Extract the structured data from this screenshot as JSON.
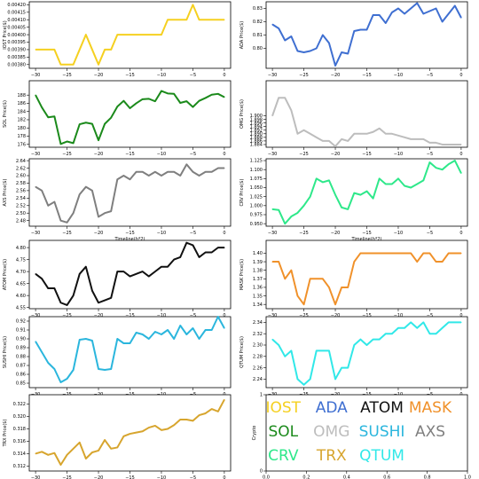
{
  "xaxis": {
    "range": [
      -31,
      1
    ],
    "ticks": [
      -30,
      -25,
      -20,
      -15,
      -10,
      -5,
      0
    ],
    "label": "Timeline(h*2)"
  },
  "legend_panel": {
    "ylabel": "Crypto",
    "xticks": [
      "0.0",
      "0.2",
      "0.4",
      "0.6",
      "0.8",
      "1.0"
    ],
    "yticks": [
      "0",
      "1"
    ],
    "entries": [
      {
        "label": "IOST",
        "color": "#f5d020"
      },
      {
        "label": "ADA",
        "color": "#3f6fd1"
      },
      {
        "label": "ATOM",
        "color": "#111111"
      },
      {
        "label": "MASK",
        "color": "#f0912a"
      },
      {
        "label": "SOL",
        "color": "#1b8a1b"
      },
      {
        "label": "OMG",
        "color": "#bdbdbd"
      },
      {
        "label": "SUSHI",
        "color": "#2bb6dd"
      },
      {
        "label": "AXS",
        "color": "#7f7f7f"
      },
      {
        "label": "CRV",
        "color": "#2ee88a"
      },
      {
        "label": "TRX",
        "color": "#d7a52e"
      },
      {
        "label": "QTUM",
        "color": "#31e8e8"
      }
    ]
  },
  "chart_data": [
    {
      "type": "line",
      "symbol": "IOST",
      "ylabel": "IOST Price($)",
      "color": "#f5d020",
      "show_xlabel": false,
      "ylim": [
        0.003775,
        0.00422
      ],
      "yticks": [
        "0.00380",
        "0.00385",
        "0.00390",
        "0.00395",
        "0.00400",
        "0.00405",
        "0.00410",
        "0.00415",
        "0.00420"
      ],
      "x": [
        -30,
        -29,
        -28,
        -27,
        -26,
        -25,
        -24,
        -23,
        -22,
        -21,
        -20,
        -19,
        -18,
        -17,
        -16,
        -15,
        -14,
        -13,
        -12,
        -11,
        -10,
        -9,
        -8,
        -7,
        -6,
        -5,
        -4,
        -3,
        -2,
        -1,
        0
      ],
      "values": [
        0.0039,
        0.0039,
        0.0039,
        0.0039,
        0.0038,
        0.0038,
        0.0038,
        0.0039,
        0.004,
        0.0039,
        0.0038,
        0.0039,
        0.0039,
        0.004,
        0.004,
        0.004,
        0.004,
        0.004,
        0.004,
        0.004,
        0.004,
        0.0041,
        0.0041,
        0.0041,
        0.0041,
        0.0042,
        0.0041,
        0.0041,
        0.0041,
        0.0041,
        0.0041
      ]
    },
    {
      "type": "line",
      "symbol": "ADA",
      "ylabel": "ADA Price($)",
      "color": "#3f6fd1",
      "show_xlabel": false,
      "ylim": [
        0.785,
        0.835
      ],
      "yticks": [
        "0.80",
        "0.81",
        "0.82",
        "0.83"
      ],
      "x": [
        -30,
        -29,
        -28,
        -27,
        -26,
        -25,
        -24,
        -23,
        -22,
        -21,
        -20,
        -19,
        -18,
        -17,
        -16,
        -15,
        -14,
        -13,
        -12,
        -11,
        -10,
        -9,
        -8,
        -7,
        -6,
        -5,
        -4,
        -3,
        -2,
        -1,
        0
      ],
      "values": [
        0.818,
        0.815,
        0.806,
        0.809,
        0.798,
        0.797,
        0.798,
        0.8,
        0.81,
        0.804,
        0.787,
        0.797,
        0.796,
        0.813,
        0.814,
        0.814,
        0.825,
        0.825,
        0.819,
        0.827,
        0.83,
        0.826,
        0.83,
        0.834,
        0.826,
        0.828,
        0.83,
        0.82,
        0.826,
        0.832,
        0.823
      ]
    },
    {
      "type": "line",
      "symbol": "SOL",
      "ylabel": "SOL Price($)",
      "color": "#1b8a1b",
      "show_xlabel": false,
      "ylim": [
        175.3,
        191.5
      ],
      "yticks": [
        "176",
        "178",
        "180",
        "182",
        "184",
        "186",
        "188"
      ],
      "x": [
        -30,
        -29,
        -28,
        -27,
        -26,
        -25,
        -24,
        -23,
        -22,
        -21,
        -20,
        -19,
        -18,
        -17,
        -16,
        -15,
        -14,
        -13,
        -12,
        -11,
        -10,
        -9,
        -8,
        -7,
        -6,
        -5,
        -4,
        -3,
        -2,
        -1,
        0
      ],
      "values": [
        188,
        185,
        182.6,
        182.8,
        176.1,
        176.7,
        176.3,
        180.9,
        181.3,
        181,
        177,
        181,
        182.5,
        185.2,
        186.6,
        184.8,
        186,
        187,
        187.1,
        186.5,
        189,
        188.4,
        188.3,
        186.1,
        186.5,
        185.1,
        186.6,
        187.3,
        188.1,
        188.3,
        187.5
      ]
    },
    {
      "type": "line",
      "symbol": "OMG",
      "ylabel": "OMG Price($)",
      "color": "#bdbdbd",
      "show_xlabel": false,
      "ylim": [
        1.8825,
        1.9195
      ],
      "yticks": [
        "1.884",
        "1.886",
        "1.888",
        "1.890",
        "1.892",
        "1.894",
        "1.896",
        "1.898",
        "1.900"
      ],
      "x": [
        -30,
        -29,
        -28,
        -27,
        -26,
        -25,
        -24,
        -23,
        -22,
        -21,
        -20,
        -19,
        -18,
        -17,
        -16,
        -15,
        -14,
        -13,
        -12,
        -11,
        -10,
        -9,
        -8,
        -7,
        -6,
        -5,
        -4,
        -3,
        -2,
        -1,
        0
      ],
      "values": [
        1.9,
        1.91,
        1.91,
        1.903,
        1.89,
        1.892,
        1.89,
        1.888,
        1.886,
        1.886,
        1.883,
        1.887,
        1.886,
        1.89,
        1.89,
        1.89,
        1.891,
        1.893,
        1.89,
        1.89,
        1.889,
        1.888,
        1.887,
        1.887,
        1.887,
        1.885,
        1.885,
        1.884,
        1.884,
        1.884,
        1.884
      ]
    },
    {
      "type": "line",
      "symbol": "AXS",
      "ylabel": "AXS Price($)",
      "color": "#7f7f7f",
      "show_xlabel": true,
      "ylim": [
        2.465,
        2.645
      ],
      "yticks": [
        "2.48",
        "2.50",
        "2.52",
        "2.54",
        "2.56",
        "2.58",
        "2.60",
        "2.62",
        "2.64"
      ],
      "x": [
        -30,
        -29,
        -28,
        -27,
        -26,
        -25,
        -24,
        -23,
        -22,
        -21,
        -20,
        -19,
        -18,
        -17,
        -16,
        -15,
        -14,
        -13,
        -12,
        -11,
        -10,
        -9,
        -8,
        -7,
        -6,
        -5,
        -4,
        -3,
        -2,
        -1,
        0
      ],
      "values": [
        2.57,
        2.56,
        2.52,
        2.53,
        2.48,
        2.475,
        2.5,
        2.55,
        2.57,
        2.56,
        2.49,
        2.5,
        2.505,
        2.59,
        2.6,
        2.59,
        2.61,
        2.61,
        2.6,
        2.61,
        2.6,
        2.61,
        2.61,
        2.6,
        2.63,
        2.61,
        2.6,
        2.61,
        2.61,
        2.62,
        2.62
      ]
    },
    {
      "type": "line",
      "symbol": "CRV",
      "ylabel": "CRV Price($)",
      "color": "#2ee88a",
      "show_xlabel": true,
      "ylim": [
        0.943,
        1.13
      ],
      "yticks": [
        "0.950",
        "0.975",
        "1.000",
        "1.025",
        "1.050",
        "1.075",
        "1.100",
        "1.125"
      ],
      "x": [
        -30,
        -29,
        -28,
        -27,
        -26,
        -25,
        -24,
        -23,
        -22,
        -21,
        -20,
        -19,
        -18,
        -17,
        -16,
        -15,
        -14,
        -13,
        -12,
        -11,
        -10,
        -9,
        -8,
        -7,
        -6,
        -5,
        -4,
        -3,
        -2,
        -1,
        0
      ],
      "values": [
        0.99,
        0.988,
        0.95,
        0.97,
        0.98,
        1.0,
        1.025,
        1.075,
        1.065,
        1.07,
        1.03,
        0.995,
        0.99,
        1.035,
        1.03,
        1.04,
        1.02,
        1.075,
        1.06,
        1.06,
        1.075,
        1.055,
        1.05,
        1.06,
        1.07,
        1.12,
        1.105,
        1.1,
        1.115,
        1.125,
        1.09
      ]
    },
    {
      "type": "line",
      "symbol": "ATOM",
      "ylabel": "ATOM Price($)",
      "color": "#111111",
      "show_xlabel": false,
      "ylim": [
        4.545,
        4.83
      ],
      "yticks": [
        "4.55",
        "4.60",
        "4.65",
        "4.70",
        "4.75",
        "4.80"
      ],
      "x": [
        -30,
        -29,
        -28,
        -27,
        -26,
        -25,
        -24,
        -23,
        -22,
        -21,
        -20,
        -19,
        -18,
        -17,
        -16,
        -15,
        -14,
        -13,
        -12,
        -11,
        -10,
        -9,
        -8,
        -7,
        -6,
        -5,
        -4,
        -3,
        -2,
        -1,
        0
      ],
      "values": [
        4.69,
        4.67,
        4.63,
        4.63,
        4.57,
        4.56,
        4.6,
        4.69,
        4.72,
        4.62,
        4.57,
        4.58,
        4.59,
        4.7,
        4.7,
        4.68,
        4.69,
        4.7,
        4.68,
        4.7,
        4.72,
        4.72,
        4.75,
        4.76,
        4.82,
        4.81,
        4.76,
        4.78,
        4.78,
        4.8,
        4.8
      ]
    },
    {
      "type": "line",
      "symbol": "MASK",
      "ylabel": "MASK Price($)",
      "color": "#f0912a",
      "show_xlabel": false,
      "ylim": [
        1.335,
        1.415
      ],
      "yticks": [
        "1.34",
        "1.35",
        "1.36",
        "1.37",
        "1.38",
        "1.39",
        "1.40"
      ],
      "x": [
        -30,
        -29,
        -28,
        -27,
        -26,
        -25,
        -24,
        -23,
        -22,
        -21,
        -20,
        -19,
        -18,
        -17,
        -16,
        -15,
        -14,
        -13,
        -12,
        -11,
        -10,
        -9,
        -8,
        -7,
        -6,
        -5,
        -4,
        -3,
        -2,
        -1,
        0
      ],
      "values": [
        1.39,
        1.39,
        1.37,
        1.38,
        1.35,
        1.34,
        1.37,
        1.37,
        1.37,
        1.36,
        1.34,
        1.36,
        1.36,
        1.39,
        1.4,
        1.4,
        1.4,
        1.4,
        1.4,
        1.4,
        1.4,
        1.4,
        1.4,
        1.39,
        1.4,
        1.4,
        1.39,
        1.39,
        1.4,
        1.4,
        1.4
      ]
    },
    {
      "type": "line",
      "symbol": "SUSHI",
      "ylabel": "SUSHI Price($)",
      "color": "#2bb6dd",
      "show_xlabel": false,
      "ylim": [
        0.845,
        0.925
      ],
      "yticks": [
        "0.85",
        "0.86",
        "0.87",
        "0.88",
        "0.89",
        "0.90",
        "0.91",
        "0.92"
      ],
      "x": [
        -30,
        -29,
        -28,
        -27,
        -26,
        -25,
        -24,
        -23,
        -22,
        -21,
        -20,
        -19,
        -18,
        -17,
        -16,
        -15,
        -14,
        -13,
        -12,
        -11,
        -10,
        -9,
        -8,
        -7,
        -6,
        -5,
        -4,
        -3,
        -2,
        -1,
        0
      ],
      "values": [
        0.897,
        0.885,
        0.873,
        0.866,
        0.851,
        0.855,
        0.865,
        0.899,
        0.9,
        0.898,
        0.866,
        0.865,
        0.866,
        0.9,
        0.895,
        0.895,
        0.907,
        0.905,
        0.9,
        0.908,
        0.905,
        0.91,
        0.9,
        0.915,
        0.905,
        0.912,
        0.9,
        0.91,
        0.91,
        0.925,
        0.912
      ]
    },
    {
      "type": "line",
      "symbol": "QTUM",
      "ylabel": "QTUM Price($)",
      "color": "#31e8e8",
      "show_xlabel": true,
      "ylim": [
        2.225,
        2.35
      ],
      "yticks": [
        "2.24",
        "2.26",
        "2.28",
        "2.30",
        "2.32",
        "2.34"
      ],
      "x": [
        -30,
        -29,
        -28,
        -27,
        -26,
        -25,
        -24,
        -23,
        -22,
        -21,
        -20,
        -19,
        -18,
        -17,
        -16,
        -15,
        -14,
        -13,
        -12,
        -11,
        -10,
        -9,
        -8,
        -7,
        -6,
        -5,
        -4,
        -3,
        -2,
        -1,
        0
      ],
      "values": [
        2.31,
        2.3,
        2.28,
        2.29,
        2.24,
        2.23,
        2.24,
        2.29,
        2.29,
        2.29,
        2.24,
        2.26,
        2.26,
        2.3,
        2.31,
        2.3,
        2.31,
        2.31,
        2.32,
        2.32,
        2.33,
        2.33,
        2.34,
        2.33,
        2.34,
        2.32,
        2.32,
        2.33,
        2.34,
        2.34,
        2.34
      ]
    },
    {
      "type": "line",
      "symbol": "TRX",
      "ylabel": "TRX Price($)",
      "color": "#d7a52e",
      "show_xlabel": true,
      "ylim": [
        0.3112,
        0.3235
      ],
      "yticks": [
        "0.312",
        "0.314",
        "0.316",
        "0.318",
        "0.320",
        "0.322"
      ],
      "x": [
        -30,
        -29,
        -28,
        -27,
        -26,
        -25,
        -24,
        -23,
        -22,
        -21,
        -20,
        -19,
        -18,
        -17,
        -16,
        -15,
        -14,
        -13,
        -12,
        -11,
        -10,
        -9,
        -8,
        -7,
        -6,
        -5,
        -4,
        -3,
        -2,
        -1,
        0
      ],
      "values": [
        0.314,
        0.3143,
        0.3138,
        0.3141,
        0.3122,
        0.3138,
        0.3148,
        0.3158,
        0.3132,
        0.3142,
        0.3145,
        0.3162,
        0.3148,
        0.315,
        0.3168,
        0.3172,
        0.3174,
        0.3176,
        0.3182,
        0.3185,
        0.3178,
        0.318,
        0.3186,
        0.3195,
        0.3195,
        0.3193,
        0.3202,
        0.3205,
        0.3212,
        0.3208,
        0.3227
      ]
    }
  ]
}
